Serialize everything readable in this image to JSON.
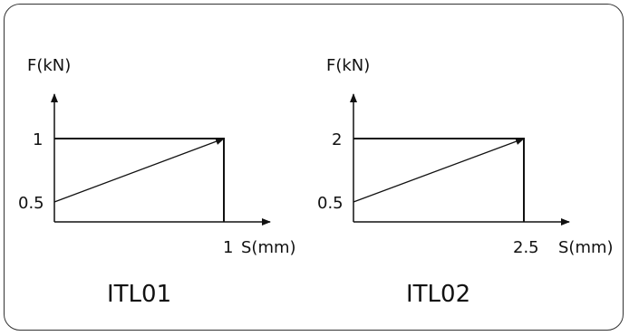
{
  "chart_data": [
    {
      "type": "line",
      "name_label": "ITL01",
      "ylabel": "F(kN)",
      "xlabel": "S(mm)",
      "x_ticks": [
        "1"
      ],
      "y_ticks": [
        "1",
        "0.5"
      ],
      "x_max": 1,
      "y_min": 0.5,
      "y_max": 1,
      "line": {
        "from": [
          0,
          0.5
        ],
        "to": [
          1,
          1
        ]
      }
    },
    {
      "type": "line",
      "name_label": "ITL02",
      "ylabel": "F(kN)",
      "xlabel": "S(mm)",
      "x_ticks": [
        "2.5"
      ],
      "y_ticks": [
        "2",
        "0.5"
      ],
      "x_max": 2.5,
      "y_min": 0.5,
      "y_max": 2,
      "line": {
        "from": [
          0,
          0.5
        ],
        "to": [
          2.5,
          2
        ]
      }
    }
  ],
  "colors": {
    "stroke": "#111111",
    "frame": "#333333"
  }
}
